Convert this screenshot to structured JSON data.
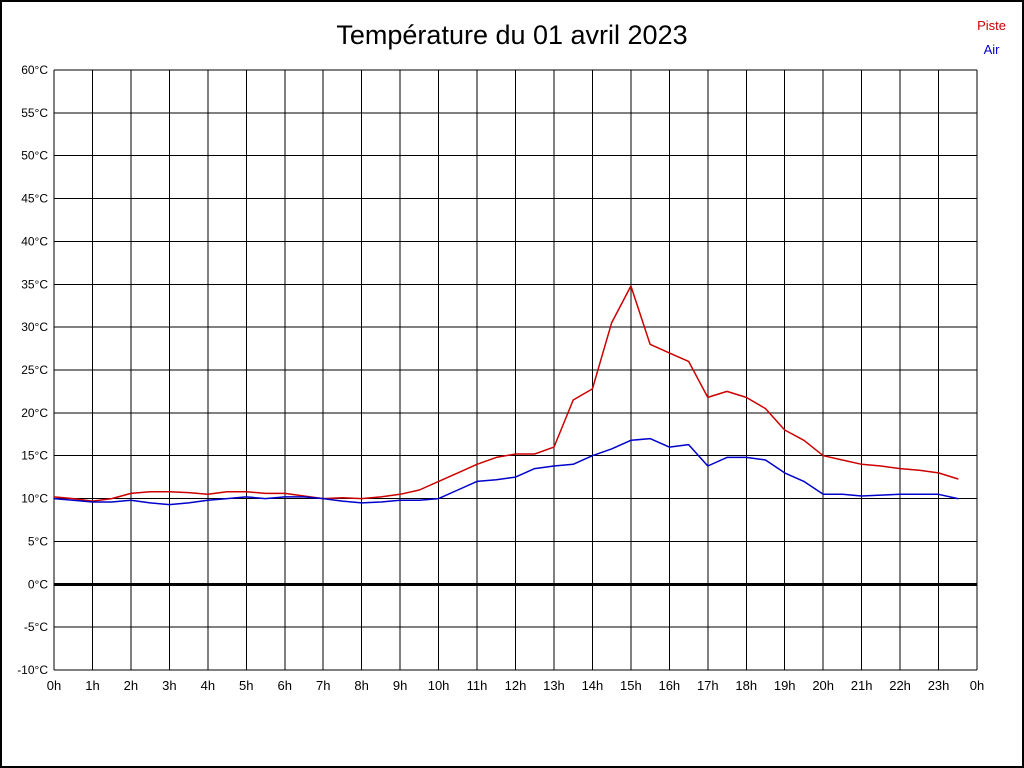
{
  "chart_data": {
    "type": "line",
    "title": "Température du 01 avril 2023",
    "ylim": [
      -10,
      60
    ],
    "xlim": [
      0,
      24
    ],
    "ytick_step": 5,
    "ytick_suffix": "°C",
    "grid": true,
    "zero_line": true,
    "legend_position": "top-right",
    "xtick_labels": [
      "0h",
      "1h",
      "2h",
      "3h",
      "4h",
      "5h",
      "6h",
      "7h",
      "8h",
      "9h",
      "10h",
      "11h",
      "12h",
      "13h",
      "14h",
      "15h",
      "16h",
      "17h",
      "18h",
      "19h",
      "20h",
      "21h",
      "22h",
      "23h",
      "0h"
    ],
    "x_hours": [
      0,
      0.5,
      1,
      1.5,
      2,
      2.5,
      3,
      3.5,
      4,
      4.5,
      5,
      5.5,
      6,
      6.5,
      7,
      7.5,
      8,
      8.5,
      9,
      9.5,
      10,
      10.5,
      11,
      11.5,
      12,
      12.5,
      13,
      13.5,
      14,
      14.5,
      15,
      15.5,
      16,
      16.5,
      17,
      17.5,
      18,
      18.5,
      19,
      19.5,
      20,
      20.5,
      21,
      21.5,
      22,
      22.5,
      23,
      23.5
    ],
    "series": [
      {
        "name": "Piste",
        "color": "#cc0000",
        "values": [
          10.2,
          10,
          9.7,
          10,
          10.6,
          10.8,
          10.8,
          10.7,
          10.5,
          10.8,
          10.8,
          10.6,
          10.6,
          10.3,
          10,
          10.1,
          10,
          10.2,
          10.5,
          11,
          12,
          13,
          14,
          14.8,
          15.2,
          15.2,
          16,
          21.5,
          22.8,
          30.5,
          34.8,
          28,
          27,
          26,
          21.8,
          22.5,
          21.8,
          20.5,
          18,
          16.8,
          15,
          14.5,
          14,
          13.8,
          13.5,
          13.3,
          13,
          12.3
        ]
      },
      {
        "name": "Air",
        "color": "#0000cc",
        "values": [
          10,
          9.8,
          9.6,
          9.6,
          9.8,
          9.5,
          9.3,
          9.5,
          9.8,
          10,
          10.2,
          10,
          10.2,
          10.2,
          10,
          9.7,
          9.5,
          9.6,
          9.8,
          9.8,
          10,
          11,
          12,
          12.2,
          12.5,
          13.5,
          13.8,
          14,
          15,
          15.8,
          16.8,
          17,
          16,
          16.3,
          13.8,
          14.8,
          14.8,
          14.5,
          13,
          12,
          10.5,
          10.5,
          10.3,
          10.4,
          10.5,
          10.5,
          10.5,
          10
        ]
      }
    ]
  }
}
